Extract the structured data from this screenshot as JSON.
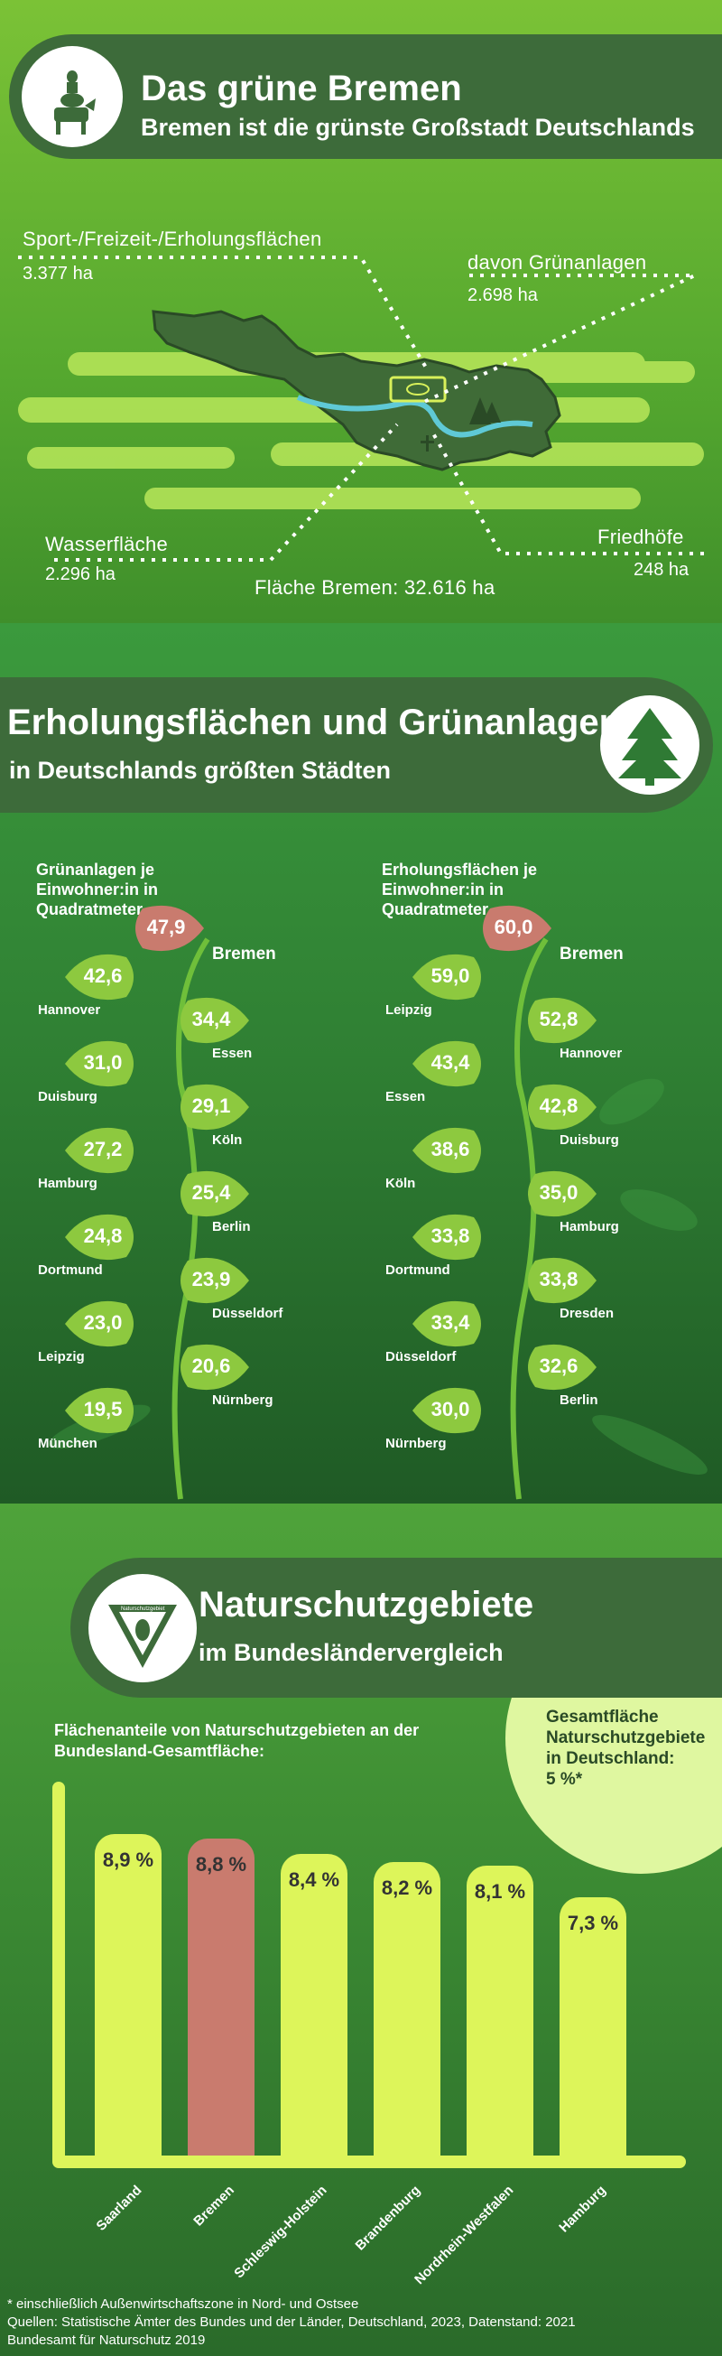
{
  "section1": {
    "title": "Das grüne Bremen",
    "subtitle": "Bremen ist die grünste Großstadt Deutschlands",
    "logo_icon": "bremen-town-musicians-icon",
    "labels": {
      "sport_label": "Sport-/Freizeit-/Erholungsflächen",
      "sport_value": "3.377 ha",
      "gruen_label": "davon Grünanlagen",
      "gruen_value": "2.698 ha",
      "wasser_label": "Wasserfläche",
      "wasser_value": "2.296 ha",
      "fried_label": "Friedhöfe",
      "fried_value": "248 ha",
      "flaeche": "Fläche Bremen: 32.616 ha"
    }
  },
  "section2": {
    "title": "Erholungsflächen und Grünanlagen",
    "subtitle": "in Deutschlands größten Städten",
    "tree_icon": "tree-icon",
    "left_caption": [
      "Grünanlagen je",
      "Einwohner:in in",
      "Quadratmeter"
    ],
    "right_caption": [
      "Erholungsflächen je",
      "Einwohner:in in",
      "Quadratmeter"
    ],
    "left": {
      "top": {
        "value": "47,9",
        "city": "Bremen"
      },
      "items": [
        {
          "value": "42,6",
          "city": "Hannover"
        },
        {
          "value": "34,4",
          "city": "Essen"
        },
        {
          "value": "31,0",
          "city": "Duisburg"
        },
        {
          "value": "29,1",
          "city": "Köln"
        },
        {
          "value": "27,2",
          "city": "Hamburg"
        },
        {
          "value": "25,4",
          "city": "Berlin"
        },
        {
          "value": "24,8",
          "city": "Dortmund"
        },
        {
          "value": "23,9",
          "city": "Düsseldorf"
        },
        {
          "value": "23,0",
          "city": "Leipzig"
        },
        {
          "value": "20,6",
          "city": "Nürnberg"
        },
        {
          "value": "19,5",
          "city": "München"
        }
      ]
    },
    "right": {
      "top": {
        "value": "60,0",
        "city": "Bremen"
      },
      "items": [
        {
          "value": "59,0",
          "city": "Leipzig"
        },
        {
          "value": "52,8",
          "city": "Hannover"
        },
        {
          "value": "43,4",
          "city": "Essen"
        },
        {
          "value": "42,8",
          "city": "Duisburg"
        },
        {
          "value": "38,6",
          "city": "Köln"
        },
        {
          "value": "35,0",
          "city": "Hamburg"
        },
        {
          "value": "33,8",
          "city": "Dortmund"
        },
        {
          "value": "33,8",
          "city": "Dresden"
        },
        {
          "value": "33,4",
          "city": "Düsseldorf"
        },
        {
          "value": "32,6",
          "city": "Berlin"
        },
        {
          "value": "30,0",
          "city": "Nürnberg"
        }
      ]
    }
  },
  "section3": {
    "title": "Naturschutzgebiete",
    "subtitle": "im Bundesländervergleich",
    "badge_text": "Naturschutzgebiet",
    "badge_icon": "owl-icon",
    "caption": [
      "Flächenanteile von Naturschutzgebieten an der",
      "Bundesland-Gesamtfläche:"
    ],
    "circle_text": [
      "Gesamtfläche",
      "Naturschutzgebiete",
      "in Deutschland:",
      "5 %*"
    ]
  },
  "chart_data": {
    "type": "bar",
    "title": "",
    "categories": [
      "Saarland",
      "Bremen",
      "Schleswig-Holstein",
      "Brandenburg",
      "Nordrhein-Westfalen",
      "Hamburg"
    ],
    "values": [
      8.9,
      8.8,
      8.4,
      8.2,
      8.1,
      7.3
    ],
    "labels": [
      "8,9 %",
      "8,8 %",
      "8,4 %",
      "8,2 %",
      "8,1 %",
      "7,3 %"
    ],
    "highlight": "Bremen",
    "colors": {
      "default": "#ddf55a",
      "highlight": "#c97b6e"
    }
  },
  "footer": {
    "note": "* einschließlich Außenwirtschaftszone in Nord- und Ostsee",
    "sources1": "Quellen:  Statistische Ämter des Bundes und der Länder, Deutschland, 2023, Datenstand: 2021",
    "sources2": "Bundesamt für Naturschutz 2019"
  },
  "colors": {
    "header_bg": "#3d6b3a",
    "leaf_green": "#8dc93f",
    "leaf_highlight": "#c97b6e",
    "bar_yellow": "#ddf55a"
  }
}
